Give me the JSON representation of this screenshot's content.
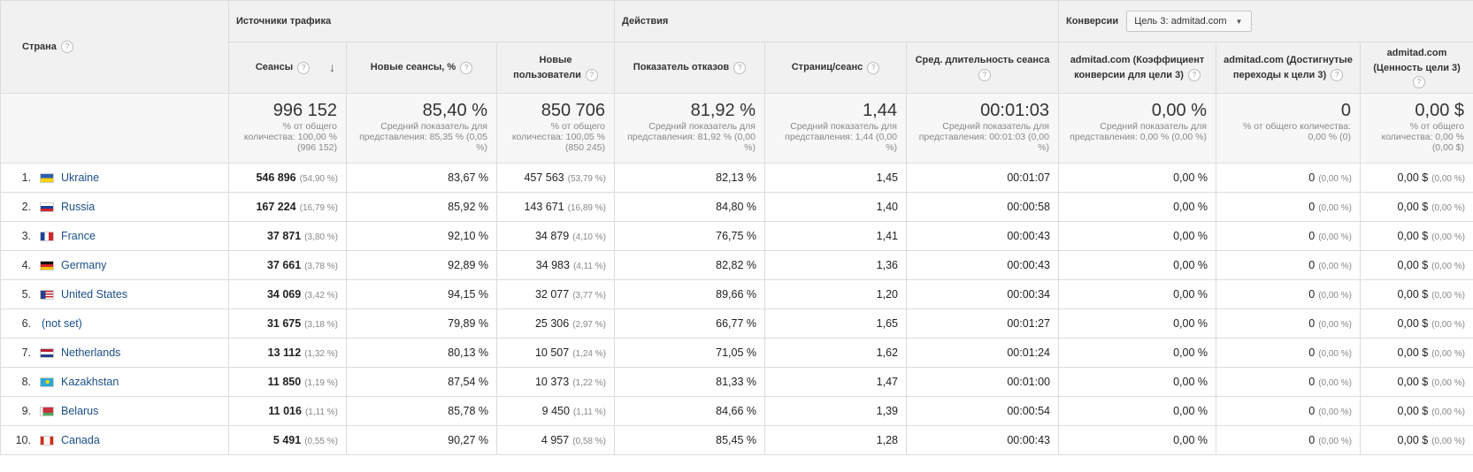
{
  "groups": {
    "dimension": "Страна",
    "traffic": "Источники трафика",
    "actions": "Действия",
    "conversions": "Конверсии",
    "goal_select": "Цель 3: admitad.com"
  },
  "columns": {
    "sessions": "Сеансы",
    "new_sessions": "Новые сеансы, %",
    "new_users": "Новые пользователи",
    "bounce": "Показатель отказов",
    "pages": "Страниц/сеанс",
    "duration": "Сред. длительность сеанса",
    "conv_rate": "admitad.com (Коэффициент конверсии для цели 3)",
    "completions": "admitad.com (Достигнутые переходы к цели 3)",
    "value": "admitad.com (Ценность цели 3)"
  },
  "totals": {
    "sessions": {
      "value": "996 152",
      "sub": "% от общего количества: 100,00 % (996 152)"
    },
    "new_sessions": {
      "value": "85,40 %",
      "sub": "Средний показатель для представления: 85,35 % (0,05 %)"
    },
    "new_users": {
      "value": "850 706",
      "sub": "% от общего количества: 100,05 % (850 245)"
    },
    "bounce": {
      "value": "81,92 %",
      "sub": "Средний показатель для представления: 81,92 % (0,00 %)"
    },
    "pages": {
      "value": "1,44",
      "sub": "Средний показатель для представления: 1,44 (0,00 %)"
    },
    "duration": {
      "value": "00:01:03",
      "sub": "Средний показатель для представления: 00:01:03 (0,00 %)"
    },
    "conv_rate": {
      "value": "0,00 %",
      "sub": "Средний показатель для представления: 0,00 % (0,00 %)"
    },
    "completions": {
      "value": "0",
      "sub": "% от общего количества: 0,00 % (0)"
    },
    "value": {
      "value": "0,00 $",
      "sub": "% от общего количества: 0,00 % (0,00 $)"
    }
  },
  "rows": [
    {
      "n": "1.",
      "flag": "ukraine-flag-icon",
      "country": "Ukraine",
      "sessions": "546 896",
      "sessions_pct": "(54,90 %)",
      "new_sessions": "83,67 %",
      "new_users": "457 563",
      "new_users_pct": "(53,79 %)",
      "bounce": "82,13 %",
      "pages": "1,45",
      "duration": "00:01:07",
      "conv_rate": "0,00 %",
      "completions": "0",
      "completions_pct": "(0,00 %)",
      "value": "0,00 $",
      "value_pct": "(0,00 %)"
    },
    {
      "n": "2.",
      "flag": "russia-flag-icon",
      "country": "Russia",
      "sessions": "167 224",
      "sessions_pct": "(16,79 %)",
      "new_sessions": "85,92 %",
      "new_users": "143 671",
      "new_users_pct": "(16,89 %)",
      "bounce": "84,80 %",
      "pages": "1,40",
      "duration": "00:00:58",
      "conv_rate": "0,00 %",
      "completions": "0",
      "completions_pct": "(0,00 %)",
      "value": "0,00 $",
      "value_pct": "(0,00 %)"
    },
    {
      "n": "3.",
      "flag": "france-flag-icon",
      "country": "France",
      "sessions": "37 871",
      "sessions_pct": "(3,80 %)",
      "new_sessions": "92,10 %",
      "new_users": "34 879",
      "new_users_pct": "(4,10 %)",
      "bounce": "76,75 %",
      "pages": "1,41",
      "duration": "00:00:43",
      "conv_rate": "0,00 %",
      "completions": "0",
      "completions_pct": "(0,00 %)",
      "value": "0,00 $",
      "value_pct": "(0,00 %)"
    },
    {
      "n": "4.",
      "flag": "germany-flag-icon",
      "country": "Germany",
      "sessions": "37 661",
      "sessions_pct": "(3,78 %)",
      "new_sessions": "92,89 %",
      "new_users": "34 983",
      "new_users_pct": "(4,11 %)",
      "bounce": "82,82 %",
      "pages": "1,36",
      "duration": "00:00:43",
      "conv_rate": "0,00 %",
      "completions": "0",
      "completions_pct": "(0,00 %)",
      "value": "0,00 $",
      "value_pct": "(0,00 %)"
    },
    {
      "n": "5.",
      "flag": "united-states-flag-icon",
      "country": "United States",
      "sessions": "34 069",
      "sessions_pct": "(3,42 %)",
      "new_sessions": "94,15 %",
      "new_users": "32 077",
      "new_users_pct": "(3,77 %)",
      "bounce": "89,66 %",
      "pages": "1,20",
      "duration": "00:00:34",
      "conv_rate": "0,00 %",
      "completions": "0",
      "completions_pct": "(0,00 %)",
      "value": "0,00 $",
      "value_pct": "(0,00 %)"
    },
    {
      "n": "6.",
      "flag": "",
      "country": "(not set)",
      "sessions": "31 675",
      "sessions_pct": "(3,18 %)",
      "new_sessions": "79,89 %",
      "new_users": "25 306",
      "new_users_pct": "(2,97 %)",
      "bounce": "66,77 %",
      "pages": "1,65",
      "duration": "00:01:27",
      "conv_rate": "0,00 %",
      "completions": "0",
      "completions_pct": "(0,00 %)",
      "value": "0,00 $",
      "value_pct": "(0,00 %)"
    },
    {
      "n": "7.",
      "flag": "netherlands-flag-icon",
      "country": "Netherlands",
      "sessions": "13 112",
      "sessions_pct": "(1,32 %)",
      "new_sessions": "80,13 %",
      "new_users": "10 507",
      "new_users_pct": "(1,24 %)",
      "bounce": "71,05 %",
      "pages": "1,62",
      "duration": "00:01:24",
      "conv_rate": "0,00 %",
      "completions": "0",
      "completions_pct": "(0,00 %)",
      "value": "0,00 $",
      "value_pct": "(0,00 %)"
    },
    {
      "n": "8.",
      "flag": "kazakhstan-flag-icon",
      "country": "Kazakhstan",
      "sessions": "11 850",
      "sessions_pct": "(1,19 %)",
      "new_sessions": "87,54 %",
      "new_users": "10 373",
      "new_users_pct": "(1,22 %)",
      "bounce": "81,33 %",
      "pages": "1,47",
      "duration": "00:01:00",
      "conv_rate": "0,00 %",
      "completions": "0",
      "completions_pct": "(0,00 %)",
      "value": "0,00 $",
      "value_pct": "(0,00 %)"
    },
    {
      "n": "9.",
      "flag": "belarus-flag-icon",
      "country": "Belarus",
      "sessions": "11 016",
      "sessions_pct": "(1,11 %)",
      "new_sessions": "85,78 %",
      "new_users": "9 450",
      "new_users_pct": "(1,11 %)",
      "bounce": "84,66 %",
      "pages": "1,39",
      "duration": "00:00:54",
      "conv_rate": "0,00 %",
      "completions": "0",
      "completions_pct": "(0,00 %)",
      "value": "0,00 $",
      "value_pct": "(0,00 %)"
    },
    {
      "n": "10.",
      "flag": "canada-flag-icon",
      "country": "Canada",
      "sessions": "5 491",
      "sessions_pct": "(0,55 %)",
      "new_sessions": "90,27 %",
      "new_users": "4 957",
      "new_users_pct": "(0,58 %)",
      "bounce": "85,45 %",
      "pages": "1,28",
      "duration": "00:00:43",
      "conv_rate": "0,00 %",
      "completions": "0",
      "completions_pct": "(0,00 %)",
      "value": "0,00 $",
      "value_pct": "(0,00 %)"
    }
  ]
}
